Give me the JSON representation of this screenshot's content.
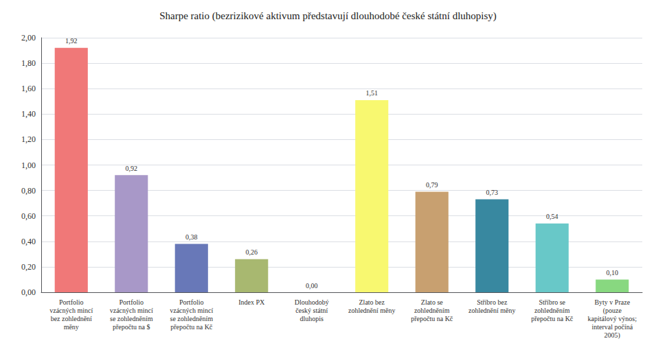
{
  "chart_data": {
    "type": "bar",
    "title": "Sharpe ratio (bezrizikové aktivum představují dlouhodobé české státní dluhopisy)",
    "categories": [
      "Portfolio\nvzácných mincí\nbez zohlednění\nměny",
      "Portfolio\nvzácných mincí\nse zohledněním\npřepočtu na $",
      "Portfolio\nvzácných mincí\nse zohledněním\npřepočtu na Kč",
      "Index PX",
      "Dlouhodobý\nčeský státní\ndluhopis",
      "Zlato bez\nzohlednění měny",
      "Zlato se\nzohledněním\npřepočtu na Kč",
      "Stříbro bez\nzohlednění měny",
      "Stříbro se\nzohledněním\npřepočtu na Kč",
      "Byty v Praze\n(pouze\nkapitálový výnos;\ninterval počíná\n2005)"
    ],
    "values": [
      1.92,
      0.92,
      0.38,
      0.26,
      0.0,
      1.51,
      0.79,
      0.73,
      0.54,
      0.1
    ],
    "value_labels": [
      "1,92",
      "0,92",
      "0,38",
      "0,26",
      "0,00",
      "1,51",
      "0,79",
      "0,73",
      "0,54",
      "0,10"
    ],
    "colors": [
      "#f07878",
      "#a898c8",
      "#6878b8",
      "#a8b870",
      "#c8c8c8",
      "#f8f870",
      "#c8a070",
      "#3888a0",
      "#68c8c8",
      "#88d880"
    ],
    "ylim": [
      0.0,
      2.0
    ],
    "yticks": [
      {
        "value": 0.0,
        "label": "0,00"
      },
      {
        "value": 0.2,
        "label": "0,20"
      },
      {
        "value": 0.4,
        "label": "0,40"
      },
      {
        "value": 0.6,
        "label": "0,60"
      },
      {
        "value": 0.8,
        "label": "0,80"
      },
      {
        "value": 1.0,
        "label": "1,00"
      },
      {
        "value": 1.2,
        "label": "1,20"
      },
      {
        "value": 1.4,
        "label": "1,40"
      },
      {
        "value": 1.6,
        "label": "1,60"
      },
      {
        "value": 1.8,
        "label": "1,80"
      },
      {
        "value": 2.0,
        "label": "2,00"
      }
    ],
    "grid": true,
    "data_labels": true
  }
}
